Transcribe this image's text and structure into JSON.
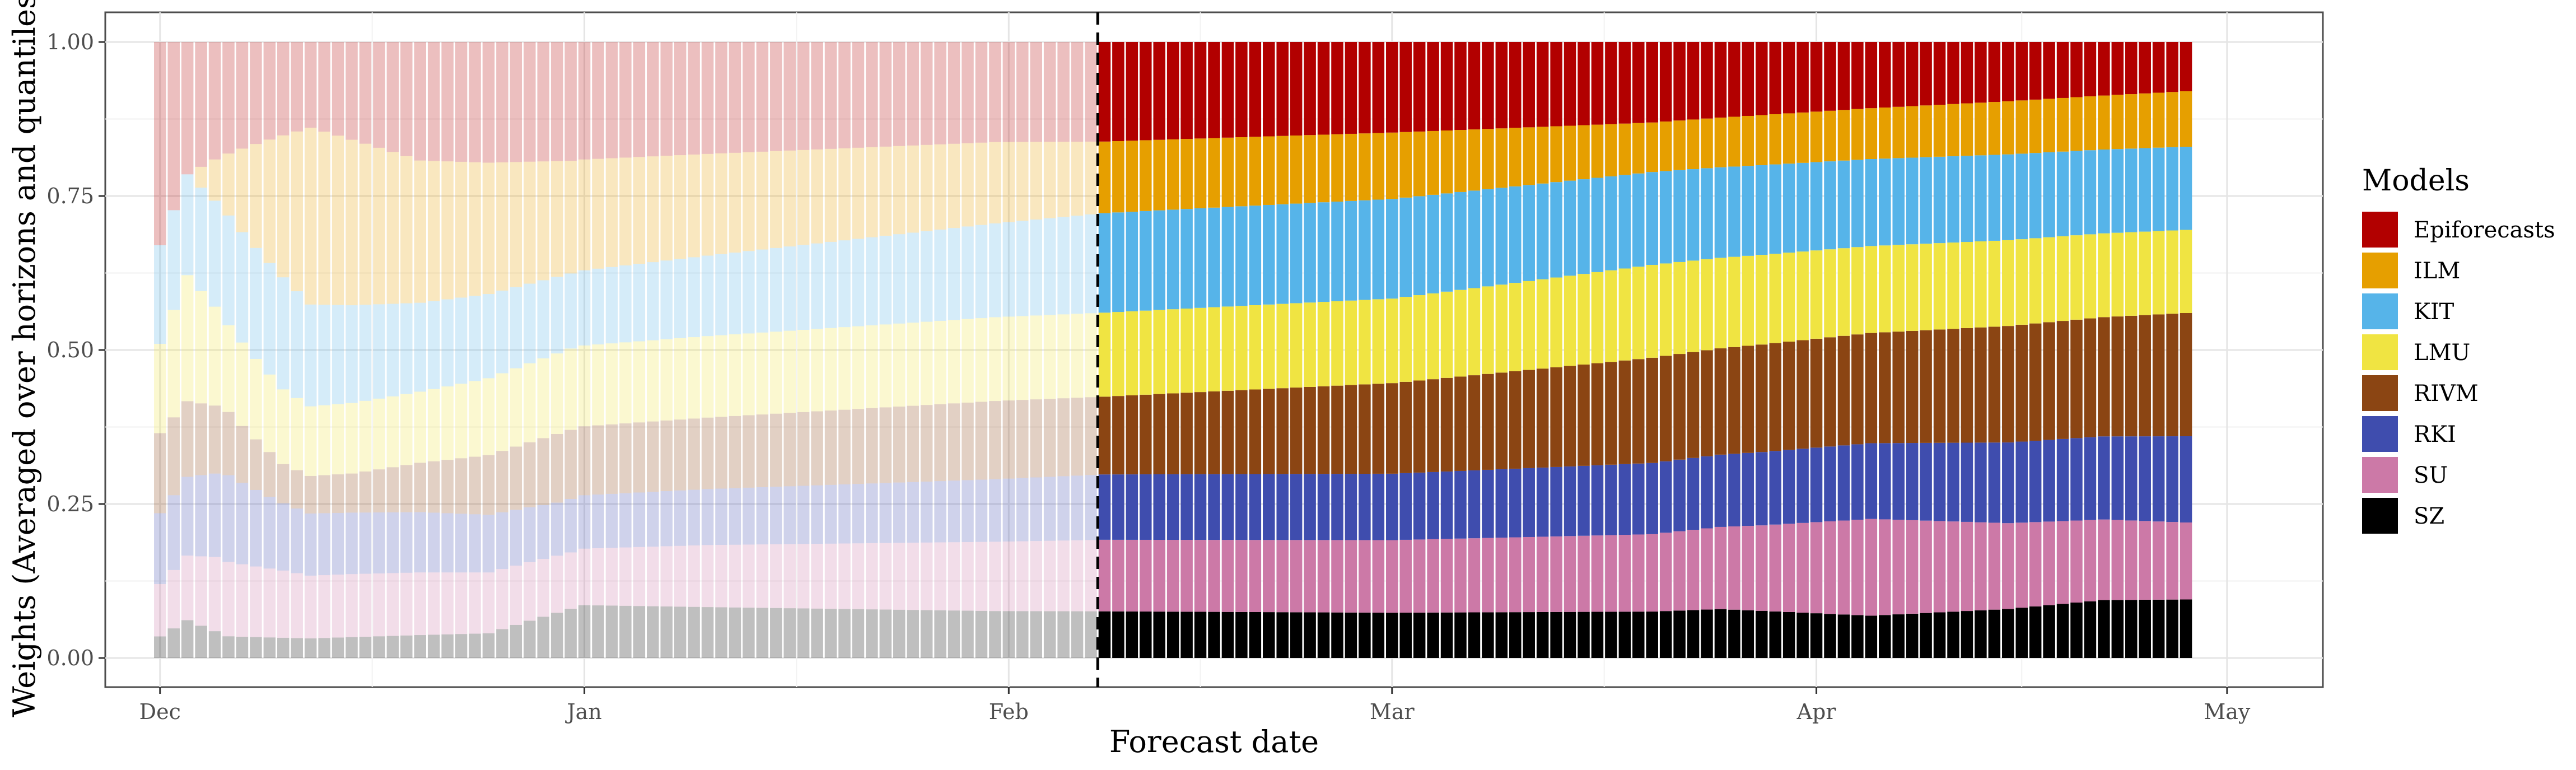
{
  "chart_data": {
    "type": "bar",
    "stacked": true,
    "xlabel": "Forecast date",
    "ylabel": "Weights (Averaged over horizons and quantiles)",
    "legend_title": "Models",
    "legend_position": "right",
    "grid": true,
    "ylim": [
      0,
      1
    ],
    "y_ticks": [
      {
        "value": 0.0,
        "label": "0.00"
      },
      {
        "value": 0.25,
        "label": "0.25"
      },
      {
        "value": 0.5,
        "label": "0.50"
      },
      {
        "value": 0.75,
        "label": "0.75"
      },
      {
        "value": 1.0,
        "label": "1.00"
      }
    ],
    "x_range": [
      "2021-11-27",
      "2022-05-08"
    ],
    "x_ticks": [
      {
        "date": "2021-12-01",
        "label": "Dec"
      },
      {
        "date": "2022-01-01",
        "label": "Jan"
      },
      {
        "date": "2022-02-01",
        "label": "Feb"
      },
      {
        "date": "2022-03-01",
        "label": "Mar"
      },
      {
        "date": "2022-04-01",
        "label": "Apr"
      },
      {
        "date": "2022-05-01",
        "label": "May"
      }
    ],
    "first_date": "2021-12-01",
    "last_date": "2022-04-28",
    "cutoff_date": "2022-02-08",
    "cutoff_line_style": "dashed",
    "faded_before_cutoff": true,
    "series": [
      {
        "name": "SZ",
        "color": "#000000",
        "keyframes": [
          [
            "2021-12-01",
            0.035
          ],
          [
            "2021-12-03",
            0.06
          ],
          [
            "2021-12-06",
            0.035
          ],
          [
            "2021-12-25",
            0.04
          ],
          [
            "2021-12-28",
            0.06
          ],
          [
            "2022-01-01",
            0.085
          ],
          [
            "2022-01-31",
            0.075
          ],
          [
            "2022-03-20",
            0.075
          ],
          [
            "2022-03-25",
            0.08
          ],
          [
            "2022-04-05",
            0.07
          ],
          [
            "2022-04-15",
            0.08
          ],
          [
            "2022-04-22",
            0.095
          ],
          [
            "2022-04-28",
            0.095
          ]
        ]
      },
      {
        "name": "SU",
        "color": "#CC79A7",
        "keyframes": [
          [
            "2021-12-01",
            0.085
          ],
          [
            "2021-12-05",
            0.12
          ],
          [
            "2021-12-10",
            0.12
          ],
          [
            "2021-12-31",
            0.09
          ],
          [
            "2022-01-10",
            0.1
          ],
          [
            "2022-02-08",
            0.115
          ],
          [
            "2022-03-20",
            0.125
          ],
          [
            "2022-03-28",
            0.14
          ],
          [
            "2022-04-05",
            0.16
          ],
          [
            "2022-04-15",
            0.14
          ],
          [
            "2022-04-28",
            0.125
          ]
        ]
      },
      {
        "name": "RKI",
        "color": "#3F4DAE",
        "keyframes": [
          [
            "2021-12-01",
            0.115
          ],
          [
            "2021-12-06",
            0.14
          ],
          [
            "2021-12-10",
            0.12
          ],
          [
            "2021-12-15",
            0.11
          ],
          [
            "2021-12-30",
            0.085
          ],
          [
            "2022-01-31",
            0.1
          ],
          [
            "2022-02-08",
            0.105
          ],
          [
            "2022-03-01",
            0.11
          ],
          [
            "2022-03-20",
            0.115
          ],
          [
            "2022-04-28",
            0.14
          ]
        ]
      },
      {
        "name": "RIVM",
        "color": "#8B4513",
        "keyframes": [
          [
            "2021-12-01",
            0.13
          ],
          [
            "2021-12-05",
            0.11
          ],
          [
            "2021-12-10",
            0.07
          ],
          [
            "2021-12-15",
            0.07
          ],
          [
            "2021-12-30",
            0.11
          ],
          [
            "2022-01-31",
            0.125
          ],
          [
            "2022-02-08",
            0.125
          ],
          [
            "2022-03-01",
            0.15
          ],
          [
            "2022-03-20",
            0.17
          ],
          [
            "2022-04-28",
            0.2
          ]
        ]
      },
      {
        "name": "LMU",
        "color": "#F0E442",
        "keyframes": [
          [
            "2021-12-01",
            0.145
          ],
          [
            "2021-12-03",
            0.2
          ],
          [
            "2021-12-06",
            0.14
          ],
          [
            "2021-12-12",
            0.13
          ],
          [
            "2021-12-20",
            0.12
          ],
          [
            "2021-12-31",
            0.13
          ],
          [
            "2022-02-08",
            0.135
          ],
          [
            "2022-03-01",
            0.14
          ],
          [
            "2022-03-20",
            0.15
          ],
          [
            "2022-04-28",
            0.135
          ]
        ]
      },
      {
        "name": "KIT",
        "color": "#56B4E9",
        "keyframes": [
          [
            "2021-12-01",
            0.16
          ],
          [
            "2021-12-03",
            0.16
          ],
          [
            "2021-12-10",
            0.2
          ],
          [
            "2021-12-20",
            0.15
          ],
          [
            "2021-12-31",
            0.12
          ],
          [
            "2022-01-31",
            0.15
          ],
          [
            "2022-02-08",
            0.16
          ],
          [
            "2022-03-01",
            0.165
          ],
          [
            "2022-03-20",
            0.15
          ],
          [
            "2022-04-28",
            0.135
          ]
        ]
      },
      {
        "name": "ILM",
        "color": "#E69F00",
        "keyframes": [
          [
            "2021-12-01",
            0.0
          ],
          [
            "2021-12-03",
            0.0
          ],
          [
            "2021-12-06",
            0.1
          ],
          [
            "2021-12-12",
            0.33
          ],
          [
            "2021-12-20",
            0.24
          ],
          [
            "2021-12-31",
            0.18
          ],
          [
            "2022-01-31",
            0.13
          ],
          [
            "2022-02-08",
            0.115
          ],
          [
            "2022-03-01",
            0.11
          ],
          [
            "2022-03-20",
            0.08
          ],
          [
            "2022-04-28",
            0.09
          ]
        ]
      },
      {
        "name": "Epiforecasts",
        "color": "#B20000",
        "keyframes": [
          [
            "2021-12-01",
            0.33
          ],
          [
            "2021-12-03",
            0.21
          ],
          [
            "2021-12-06",
            0.18
          ],
          [
            "2021-12-12",
            0.16
          ],
          [
            "2021-12-20",
            0.2
          ],
          [
            "2021-12-31",
            0.19
          ],
          [
            "2022-01-31",
            0.16
          ],
          [
            "2022-02-08",
            0.16
          ],
          [
            "2022-03-01",
            0.15
          ],
          [
            "2022-03-20",
            0.13
          ],
          [
            "2022-04-28",
            0.08
          ]
        ]
      }
    ]
  }
}
